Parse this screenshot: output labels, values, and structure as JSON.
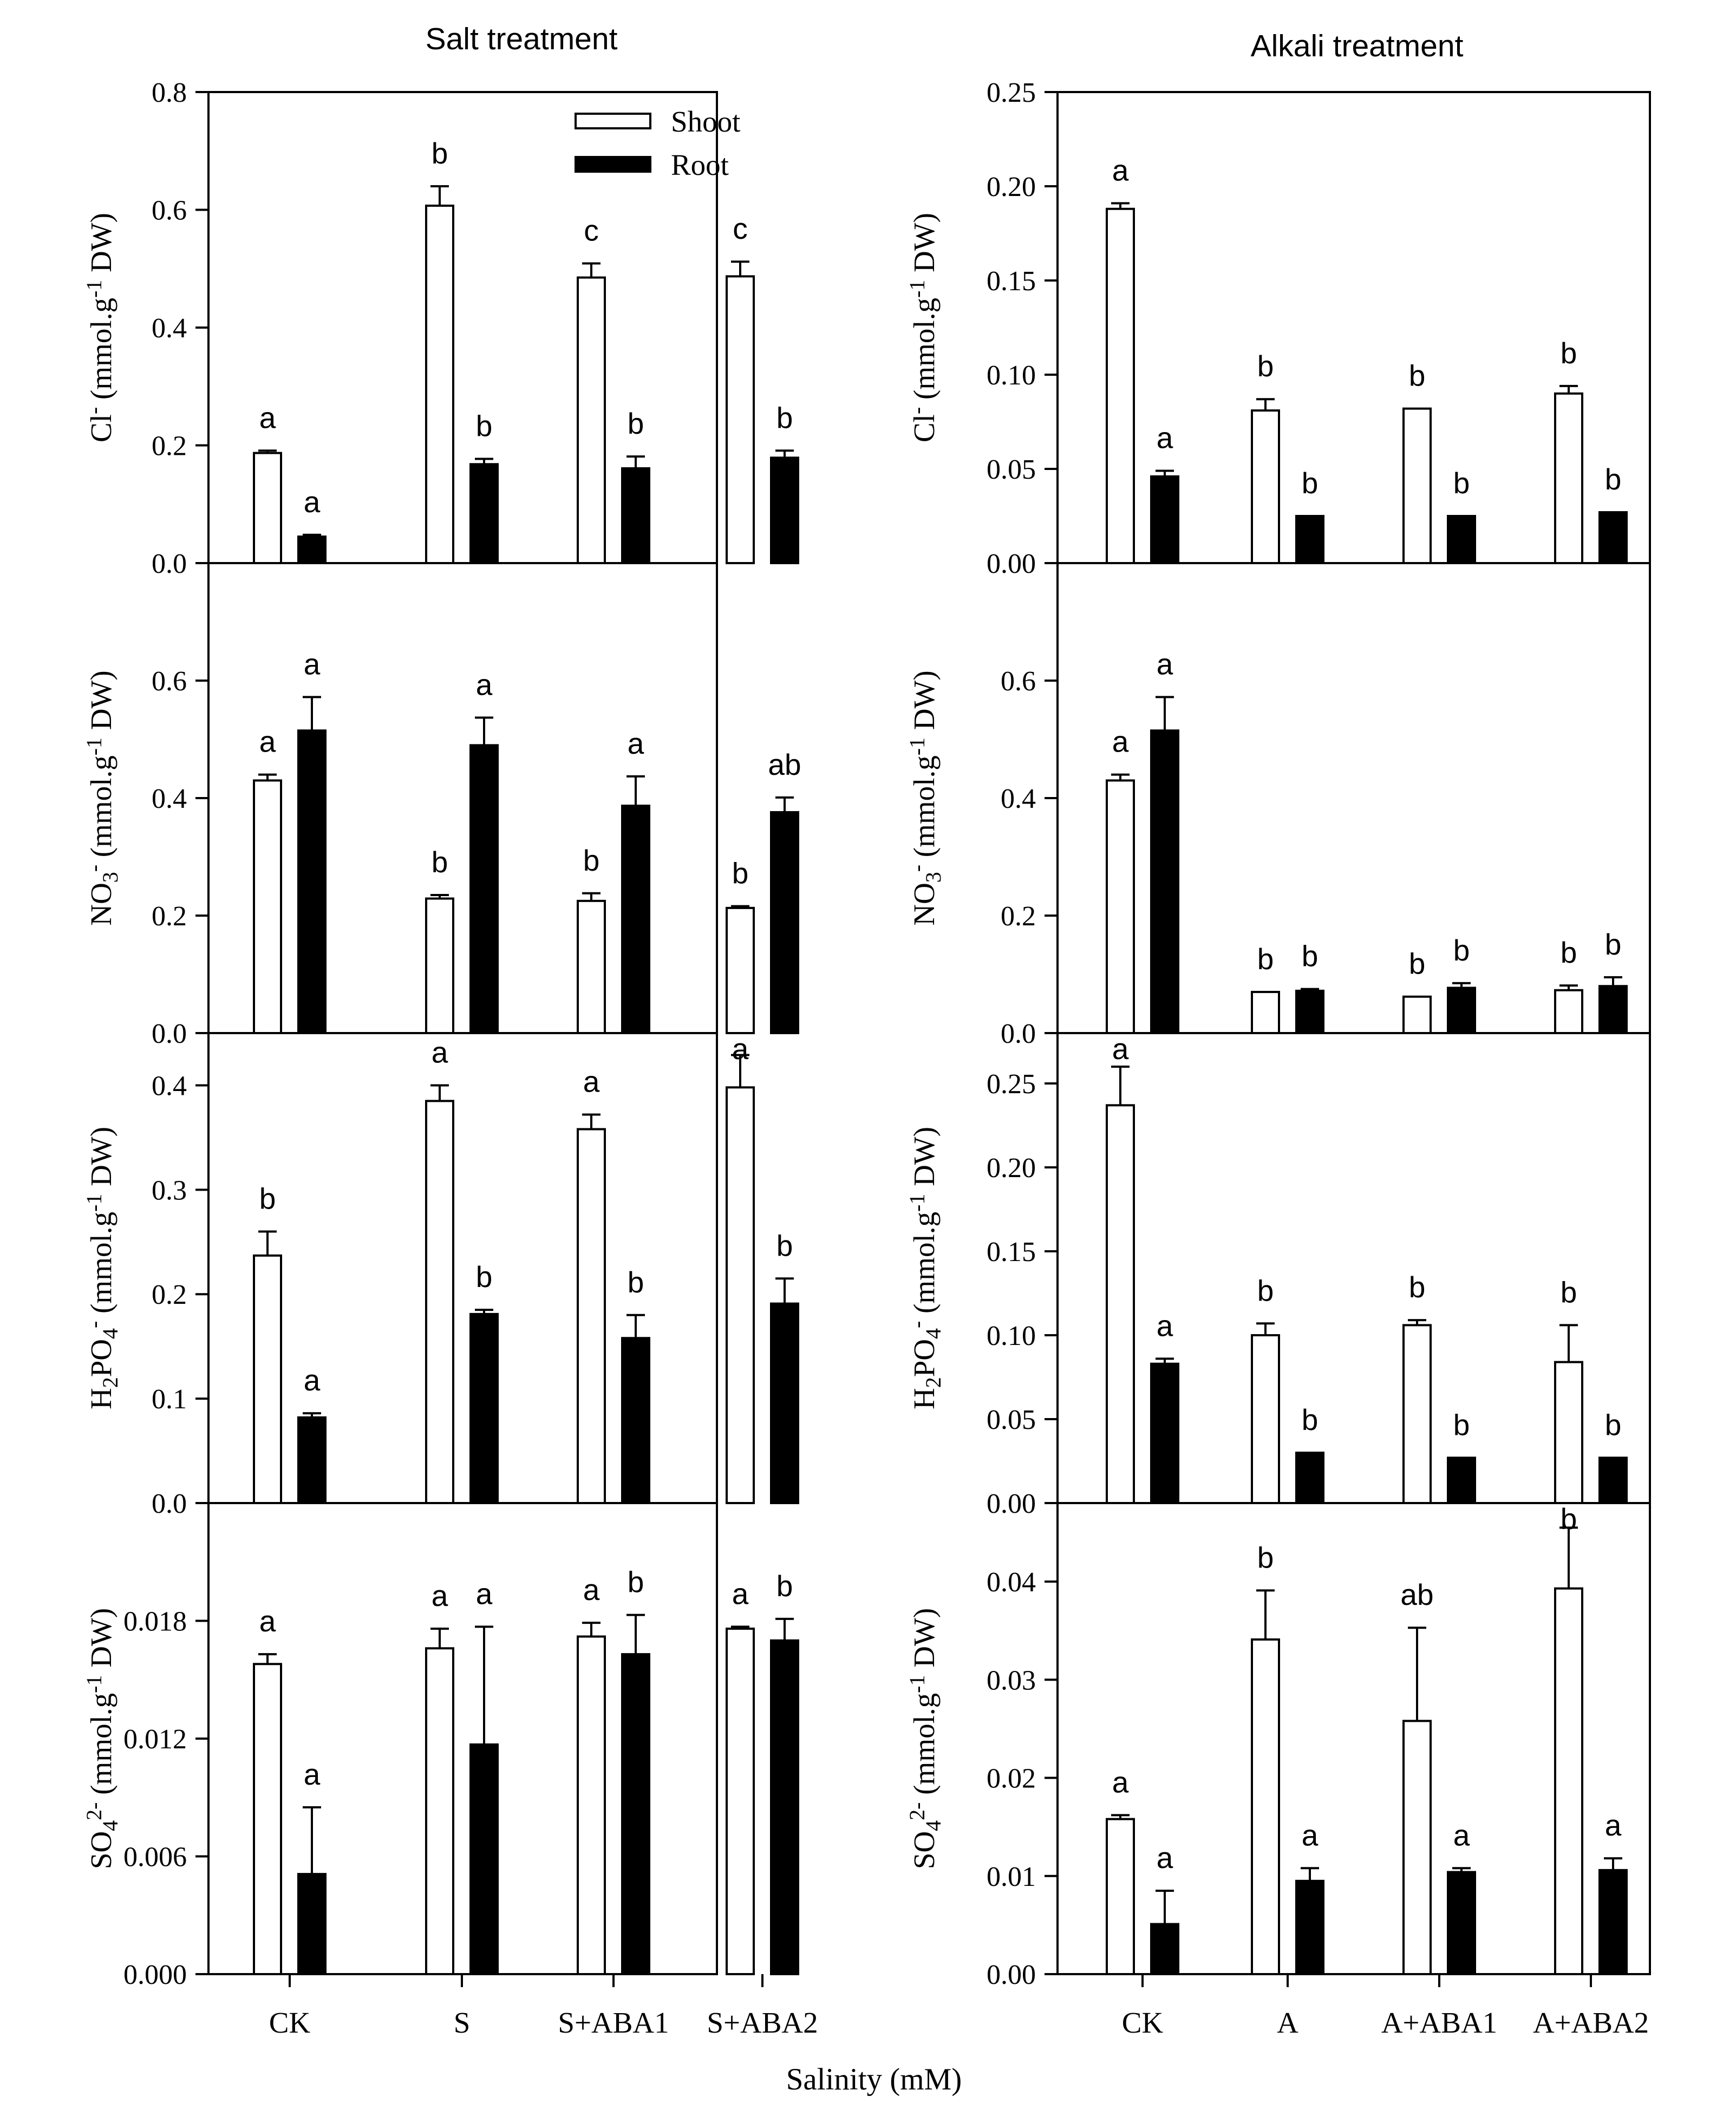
{
  "figure": {
    "left_title": "Salt treatment",
    "right_title": "Alkali treatment",
    "xlabel": "Salinity (mM)"
  },
  "legend": {
    "shoot_label": "Shoot",
    "root_label": "Root",
    "shoot_color": "#ffffff",
    "root_color": "#000000"
  },
  "chart_data": [
    {
      "type": "bar",
      "column": "salt",
      "row": 0,
      "title": "Salt treatment",
      "ylabel": {
        "ion": "Cl",
        "sub": "",
        "sup": "-",
        "unit_pre": " (mmol.g",
        "unit_sup": "-1",
        "unit_post": " DW)"
      },
      "categories": [
        "CK",
        "S",
        "S+ABA1",
        "S+ABA2"
      ],
      "ylim": [
        0,
        0.8
      ],
      "yticks": [
        "0.0",
        "0.2",
        "0.4",
        "0.6",
        "0.8"
      ],
      "series": [
        {
          "name": "Shoot",
          "values": [
            0.187,
            0.607,
            0.485,
            0.487
          ],
          "errors": [
            0.004,
            0.033,
            0.024,
            0.025
          ],
          "letters": [
            "a",
            "b",
            "c",
            "c"
          ]
        },
        {
          "name": "Root",
          "values": [
            0.045,
            0.168,
            0.161,
            0.179
          ],
          "errors": [
            0.003,
            0.009,
            0.02,
            0.012
          ],
          "letters": [
            "a",
            "b",
            "b",
            "b"
          ]
        }
      ],
      "legend_shown": true
    },
    {
      "type": "bar",
      "column": "salt",
      "row": 1,
      "ylabel": {
        "ion": "NO",
        "sub": "3",
        "sup": "-",
        "unit_pre": " (mmol.g",
        "unit_sup": "-1",
        "unit_post": " DW)"
      },
      "categories": [
        "CK",
        "S",
        "S+ABA1",
        "S+ABA2"
      ],
      "ylim": [
        0,
        0.8
      ],
      "yticks": [
        "0.0",
        "0.2",
        "0.4",
        "0.6"
      ],
      "series": [
        {
          "name": "Shoot",
          "values": [
            0.43,
            0.229,
            0.225,
            0.213
          ],
          "errors": [
            0.01,
            0.006,
            0.013,
            0.003
          ],
          "letters": [
            "a",
            "b",
            "b",
            "b"
          ]
        },
        {
          "name": "Root",
          "values": [
            0.515,
            0.49,
            0.387,
            0.376
          ],
          "errors": [
            0.057,
            0.047,
            0.05,
            0.025
          ],
          "letters": [
            "a",
            "a",
            "a",
            "ab"
          ]
        }
      ]
    },
    {
      "type": "bar",
      "column": "salt",
      "row": 2,
      "ylabel": {
        "ion": "H",
        "sub": "2",
        "ion2": "PO",
        "sub2": "4",
        "sup": "-",
        "unit_pre": " (mmol.g",
        "unit_sup": "-1",
        "unit_post": " DW)"
      },
      "categories": [
        "CK",
        "S",
        "S+ABA1",
        "S+ABA2"
      ],
      "ylim": [
        0,
        0.45
      ],
      "yticks": [
        "0.0",
        "0.1",
        "0.2",
        "0.3",
        "0.4"
      ],
      "series": [
        {
          "name": "Shoot",
          "values": [
            0.237,
            0.385,
            0.358,
            0.398
          ],
          "errors": [
            0.023,
            0.015,
            0.014,
            0.031
          ],
          "letters": [
            "b",
            "a",
            "a",
            "a"
          ]
        },
        {
          "name": "Root",
          "values": [
            0.082,
            0.181,
            0.158,
            0.191
          ],
          "errors": [
            0.004,
            0.004,
            0.022,
            0.024
          ],
          "letters": [
            "a",
            "b",
            "b",
            "b"
          ]
        }
      ]
    },
    {
      "type": "bar",
      "column": "salt",
      "row": 3,
      "ylabel": {
        "ion": "SO",
        "sub": "4",
        "sup": "2-",
        "unit_pre": " (mmol.g",
        "unit_sup": "-1",
        "unit_post": " DW)"
      },
      "categories": [
        "CK",
        "S",
        "S+ABA1",
        "S+ABA2"
      ],
      "ylim": [
        0,
        0.024
      ],
      "yticks": [
        "0.000",
        "0.006",
        "0.012",
        "0.018"
      ],
      "series": [
        {
          "name": "Shoot",
          "values": [
            0.0158,
            0.0166,
            0.0172,
            0.0176
          ],
          "errors": [
            0.0005,
            0.001,
            0.0007,
            0.0001
          ],
          "letters": [
            "a",
            "a",
            "a",
            "a"
          ]
        },
        {
          "name": "Root",
          "values": [
            0.0051,
            0.0117,
            0.0163,
            0.017
          ],
          "errors": [
            0.0034,
            0.006,
            0.002,
            0.0011
          ],
          "letters": [
            "a",
            "a",
            "b",
            "b"
          ]
        }
      ]
    },
    {
      "type": "bar",
      "column": "alkali",
      "row": 0,
      "title": "Alkali treatment",
      "ylabel": {
        "ion": "Cl",
        "sub": "",
        "sup": "-",
        "unit_pre": " (mmol.g",
        "unit_sup": "-1",
        "unit_post": " DW)"
      },
      "categories": [
        "CK",
        "A",
        "A+ABA1",
        "A+ABA2"
      ],
      "ylim": [
        0,
        0.25
      ],
      "yticks": [
        "0.00",
        "0.05",
        "0.10",
        "0.15",
        "0.20",
        "0.25"
      ],
      "series": [
        {
          "name": "Shoot",
          "values": [
            0.188,
            0.081,
            0.082,
            0.09
          ],
          "errors": [
            0.003,
            0.006,
            0.0,
            0.004
          ],
          "letters": [
            "a",
            "b",
            "b",
            "b"
          ]
        },
        {
          "name": "Root",
          "values": [
            0.046,
            0.025,
            0.025,
            0.027
          ],
          "errors": [
            0.003,
            0.0,
            0.0,
            0.0
          ],
          "letters": [
            "a",
            "b",
            "b",
            "b"
          ]
        }
      ]
    },
    {
      "type": "bar",
      "column": "alkali",
      "row": 1,
      "ylabel": {
        "ion": "NO",
        "sub": "3",
        "sup": "-",
        "unit_pre": " (mmol.g",
        "unit_sup": "-1",
        "unit_post": " DW)"
      },
      "categories": [
        "CK",
        "A",
        "A+ABA1",
        "A+ABA2"
      ],
      "ylim": [
        0,
        0.8
      ],
      "yticks": [
        "0.0",
        "0.2",
        "0.4",
        "0.6"
      ],
      "series": [
        {
          "name": "Shoot",
          "values": [
            0.43,
            0.07,
            0.062,
            0.073
          ],
          "errors": [
            0.01,
            0.0,
            0.0,
            0.008
          ],
          "letters": [
            "a",
            "b",
            "b",
            "b"
          ]
        },
        {
          "name": "Root",
          "values": [
            0.515,
            0.072,
            0.077,
            0.08
          ],
          "errors": [
            0.057,
            0.003,
            0.008,
            0.015
          ],
          "letters": [
            "a",
            "b",
            "b",
            "b"
          ]
        }
      ]
    },
    {
      "type": "bar",
      "column": "alkali",
      "row": 2,
      "ylabel": {
        "ion": "H",
        "sub": "2",
        "ion2": "PO",
        "sub2": "4",
        "sup": "-",
        "unit_pre": " (mmol.g",
        "unit_sup": "-1",
        "unit_post": " DW)"
      },
      "categories": [
        "CK",
        "A",
        "A+ABA1",
        "A+ABA2"
      ],
      "ylim": [
        0,
        0.28
      ],
      "yticks": [
        "0.00",
        "0.05",
        "0.10",
        "0.15",
        "0.20",
        "0.25"
      ],
      "series": [
        {
          "name": "Shoot",
          "values": [
            0.237,
            0.1,
            0.106,
            0.084
          ],
          "errors": [
            0.023,
            0.007,
            0.003,
            0.022
          ],
          "letters": [
            "a",
            "b",
            "b",
            "b"
          ]
        },
        {
          "name": "Root",
          "values": [
            0.083,
            0.03,
            0.027,
            0.027
          ],
          "errors": [
            0.003,
            0.0,
            0.0,
            0.0
          ],
          "letters": [
            "a",
            "b",
            "b",
            "b"
          ]
        }
      ]
    },
    {
      "type": "bar",
      "column": "alkali",
      "row": 3,
      "ylabel": {
        "ion": "SO",
        "sub": "4",
        "sup": "2-",
        "unit_pre": " (mmol.g",
        "unit_sup": "-1",
        "unit_post": " DW)"
      },
      "categories": [
        "CK",
        "A",
        "A+ABA1",
        "A+ABA2"
      ],
      "ylim": [
        0,
        0.048
      ],
      "yticks": [
        "0.00",
        "0.01",
        "0.02",
        "0.03",
        "0.04"
      ],
      "series": [
        {
          "name": "Shoot",
          "values": [
            0.0158,
            0.0341,
            0.0258,
            0.0393
          ],
          "errors": [
            0.0004,
            0.005,
            0.0095,
            0.0062
          ],
          "letters": [
            "a",
            "b",
            "ab",
            "b"
          ]
        },
        {
          "name": "Root",
          "values": [
            0.0051,
            0.0095,
            0.0104,
            0.0106
          ],
          "errors": [
            0.0034,
            0.0013,
            0.0004,
            0.0012
          ],
          "letters": [
            "a",
            "a",
            "a",
            "a"
          ]
        }
      ]
    }
  ]
}
